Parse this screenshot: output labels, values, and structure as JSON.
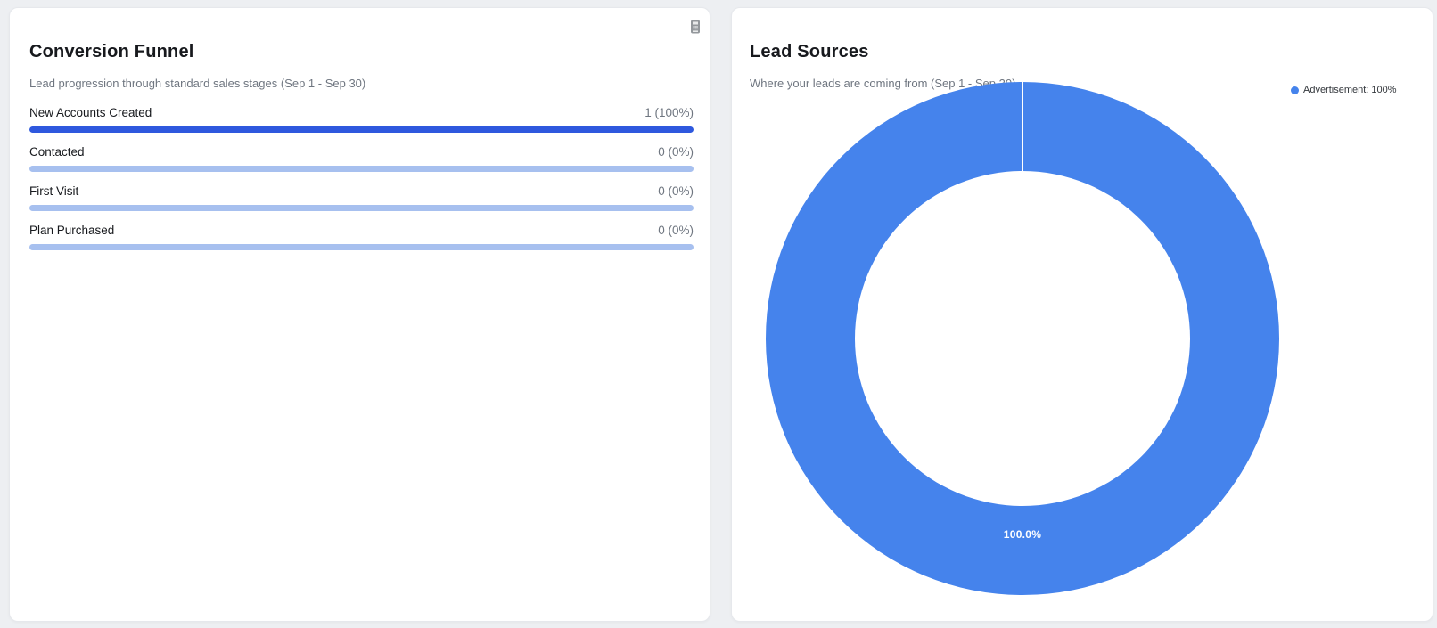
{
  "colors": {
    "page_background": "#edeff2",
    "card_background": "#ffffff",
    "funnel_bar_fill": "#2e58de",
    "funnel_bar_track": "#a7c0ef",
    "donut_slice": "#4583ec",
    "title_text": "#17191d",
    "muted_text": "#6f7680"
  },
  "funnel_card": {
    "title": "Conversion Funnel",
    "subtitle": "Lead progression through standard sales stages (Sep 1 - Sep 30)",
    "icon": "calculator-icon",
    "rows": [
      {
        "label": "New Accounts Created",
        "value_text": "1 (100%)",
        "count": 1,
        "percent": 100
      },
      {
        "label": "Contacted",
        "value_text": "0 (0%)",
        "count": 0,
        "percent": 0
      },
      {
        "label": "First Visit",
        "value_text": "0 (0%)",
        "count": 0,
        "percent": 0
      },
      {
        "label": "Plan Purchased",
        "value_text": "0 (0%)",
        "count": 0,
        "percent": 0
      }
    ]
  },
  "lead_sources_card": {
    "title": "Lead Sources",
    "subtitle": "Where your leads are coming from (Sep 1 - Sep 30)",
    "legend": [
      {
        "label": "Advertisement: 100%",
        "color": "#4583ec"
      }
    ],
    "slice_label": "100.0%"
  },
  "chart_data": [
    {
      "type": "bar",
      "orientation": "horizontal",
      "title": "Conversion Funnel",
      "categories": [
        "New Accounts Created",
        "Contacted",
        "First Visit",
        "Plan Purchased"
      ],
      "values": [
        1,
        0,
        0,
        0
      ],
      "percents": [
        100,
        0,
        0,
        0
      ],
      "value_labels": [
        "1 (100%)",
        "0 (0%)",
        "0 (0%)",
        "0 (0%)"
      ],
      "xlim": [
        0,
        100
      ],
      "bar_color": "#2e58de",
      "track_color": "#a7c0ef",
      "grid": false
    },
    {
      "type": "pie",
      "donut": true,
      "title": "Lead Sources",
      "categories": [
        "Advertisement"
      ],
      "values": [
        100
      ],
      "slice_labels": [
        "100.0%"
      ],
      "colors": [
        "#4583ec"
      ],
      "legend_position": "top-right",
      "legend_entries": [
        "Advertisement: 100%"
      ]
    }
  ]
}
